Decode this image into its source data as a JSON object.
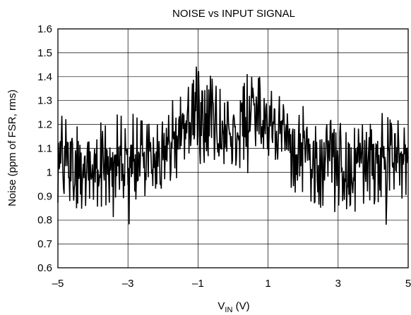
{
  "chart_data": {
    "type": "line",
    "title": "NOISE vs INPUT SIGNAL",
    "xlabel_main": "V",
    "xlabel_sub": "IN",
    "xlabel_unit": " (V)",
    "ylabel": "Noise (ppm of FSR, rms)",
    "xlim": [
      -5,
      5
    ],
    "ylim": [
      0.6,
      1.6
    ],
    "xticks": [
      -5,
      -3,
      -1,
      1,
      3,
      5
    ],
    "xtick_labels": [
      "–5",
      "–3",
      "–1",
      "1",
      "3",
      "5"
    ],
    "yticks": [
      0.6,
      0.7,
      0.8,
      0.9,
      1,
      1.1,
      1.2,
      1.3,
      1.4,
      1.5,
      1.6
    ],
    "ytick_labels": [
      "0.6",
      "0.7",
      "0.8",
      "0.9",
      "1",
      "1.1",
      "1.2",
      "1.3",
      "1.4",
      "1.5",
      "1.6"
    ],
    "grid": true,
    "series": [
      {
        "color": "#000000",
        "x": [
          -5.0,
          -4.8,
          -4.6,
          -4.4,
          -4.2,
          -4.0,
          -3.8,
          -3.6,
          -3.4,
          -3.2,
          -3.0,
          -2.8,
          -2.6,
          -2.4,
          -2.2,
          -2.0,
          -1.8,
          -1.6,
          -1.4,
          -1.2,
          -1.0,
          -0.8,
          -0.6,
          -0.4,
          -0.2,
          0.0,
          0.2,
          0.4,
          0.6,
          0.8,
          1.0,
          1.2,
          1.4,
          1.6,
          1.8,
          2.0,
          2.2,
          2.4,
          2.6,
          2.8,
          3.0,
          3.2,
          3.4,
          3.6,
          3.8,
          4.0,
          4.2,
          4.4,
          4.6,
          4.8,
          5.0
        ],
        "mean": [
          1.07,
          1.06,
          1.05,
          1.04,
          1.03,
          1.03,
          1.03,
          1.03,
          1.03,
          1.03,
          1.03,
          1.04,
          1.05,
          1.06,
          1.08,
          1.1,
          1.12,
          1.15,
          1.18,
          1.21,
          1.24,
          1.24,
          1.22,
          1.19,
          1.17,
          1.16,
          1.18,
          1.22,
          1.25,
          1.25,
          1.22,
          1.19,
          1.16,
          1.13,
          1.1,
          1.08,
          1.06,
          1.05,
          1.04,
          1.03,
          1.03,
          1.03,
          1.03,
          1.03,
          1.03,
          1.04,
          1.05,
          1.06,
          1.07,
          1.07,
          1.07
        ],
        "max": [
          1.28,
          1.22,
          1.25,
          1.22,
          1.21,
          1.22,
          1.21,
          1.2,
          1.22,
          1.18,
          1.22,
          1.22,
          1.23,
          1.22,
          1.22,
          1.25,
          1.24,
          1.3,
          1.33,
          1.38,
          1.47,
          1.44,
          1.4,
          1.38,
          1.3,
          1.3,
          1.36,
          1.45,
          1.45,
          1.43,
          1.35,
          1.33,
          1.3,
          1.25,
          1.28,
          1.22,
          1.2,
          1.25,
          1.2,
          1.22,
          1.2,
          1.22,
          1.22,
          1.2,
          1.25,
          1.22,
          1.22,
          1.24,
          1.23,
          1.22,
          1.25
        ],
        "min": [
          0.93,
          0.9,
          0.86,
          0.84,
          0.85,
          0.88,
          0.88,
          0.82,
          0.81,
          0.8,
          0.74,
          0.83,
          0.88,
          0.88,
          0.88,
          0.9,
          0.95,
          0.97,
          1.02,
          1.05,
          1.04,
          1.02,
          1.03,
          1.02,
          1.05,
          1.04,
          1.06,
          1.04,
          1.08,
          1.1,
          1.06,
          1.04,
          1.0,
          0.95,
          0.9,
          0.88,
          0.87,
          0.84,
          0.86,
          0.82,
          0.84,
          0.86,
          0.83,
          0.82,
          0.88,
          0.86,
          0.88,
          0.75,
          0.82,
          0.88,
          0.93
        ]
      }
    ]
  }
}
